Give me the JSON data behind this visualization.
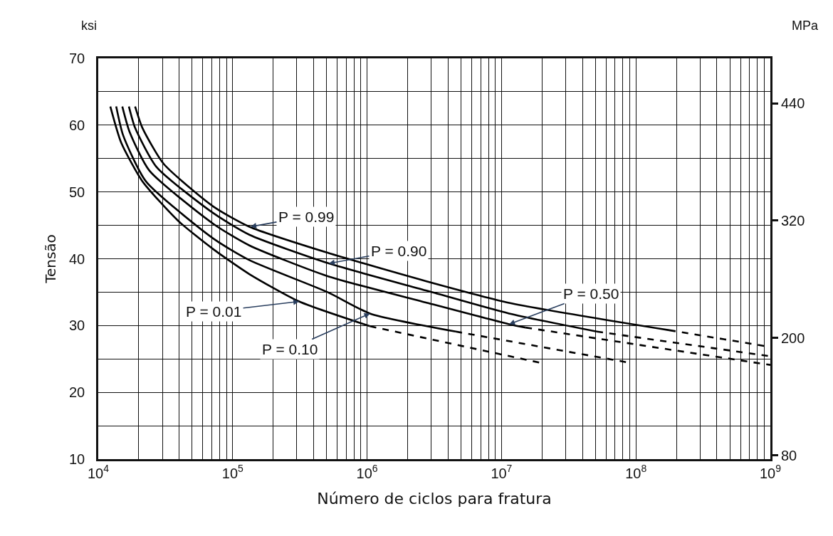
{
  "chart_data": {
    "type": "line",
    "xlabel": "Número de ciclos para fratura",
    "ylabel": "Tensão",
    "y2label": "MPa",
    "log": "x",
    "grid": true,
    "marker": "none",
    "xlim": [
      10000,
      1000000000
    ],
    "xticks": [
      {
        "value": 10000,
        "label": "10$^{4}$"
      },
      {
        "value": 20000,
        "label": null
      },
      {
        "value": 30000,
        "label": null
      },
      {
        "value": 40000,
        "label": null
      },
      {
        "value": 50000,
        "label": null
      },
      {
        "value": 60000,
        "label": null
      },
      {
        "value": 70000,
        "label": null
      },
      {
        "value": 80000,
        "label": null
      },
      {
        "value": 90000,
        "label": null
      },
      {
        "value": 100000,
        "label": "10$^{5}$"
      },
      {
        "value": 200000,
        "label": null
      },
      {
        "value": 300000,
        "label": null
      },
      {
        "value": 400000,
        "label": null
      },
      {
        "value": 500000,
        "label": null
      },
      {
        "value": 600000,
        "label": null
      },
      {
        "value": 700000,
        "label": null
      },
      {
        "value": 800000,
        "label": null
      },
      {
        "value": 900000,
        "label": null
      },
      {
        "value": 1000000,
        "label": "10$^{6}$"
      },
      {
        "value": 2000000,
        "label": null
      },
      {
        "value": 3000000,
        "label": null
      },
      {
        "value": 4000000,
        "label": null
      },
      {
        "value": 5000000,
        "label": null
      },
      {
        "value": 6000000,
        "label": null
      },
      {
        "value": 7000000,
        "label": null
      },
      {
        "value": 8000000,
        "label": null
      },
      {
        "value": 9000000,
        "label": null
      },
      {
        "value": 10000000,
        "label": "10$^{7}$"
      },
      {
        "value": 20000000,
        "label": null
      },
      {
        "value": 30000000,
        "label": null
      },
      {
        "value": 40000000,
        "label": null
      },
      {
        "value": 50000000,
        "label": null
      },
      {
        "value": 60000000,
        "label": null
      },
      {
        "value": 70000000,
        "label": null
      },
      {
        "value": 80000000,
        "label": null
      },
      {
        "value": 90000000,
        "label": null
      },
      {
        "value": 100000000,
        "label": "10$^{8}$"
      },
      {
        "value": 200000000,
        "label": null
      },
      {
        "value": 300000000,
        "label": null
      },
      {
        "value": 400000000,
        "label": null
      },
      {
        "value": 500000000,
        "label": null
      },
      {
        "value": 600000000,
        "label": null
      },
      {
        "value": 700000000,
        "label": null
      },
      {
        "value": 800000000,
        "label": null
      },
      {
        "value": 900000000,
        "label": null
      },
      {
        "value": 1000000000,
        "label": "10$^{9}$"
      }
    ],
    "ylim": [
      10,
      70
    ],
    "yticks": [
      10,
      {
        "value": 15,
        "label": null
      },
      20,
      {
        "value": 25,
        "label": null
      },
      30,
      {
        "value": 35,
        "label": null
      },
      40,
      {
        "value": 45,
        "label": null
      },
      50,
      {
        "value": 55,
        "label": null
      },
      60,
      {
        "value": 65,
        "label": null
      },
      70
    ],
    "y2lim": [
      76,
      486
    ],
    "y2ticks": [
      80,
      200,
      320,
      440
    ],
    "series": [
      {
        "color": "#000000",
        "line_style": "solid",
        "x": [
          18800,
          21300,
          30700,
          72100,
          133000,
          508000,
          2800000,
          11400000,
          177000000
        ],
        "values": [
          62.8,
          59.6,
          54.2,
          47.8,
          44.8,
          40.9,
          36.6,
          33.4,
          29.3
        ]
      },
      {
        "color": "#000000",
        "line_style": "dashed",
        "x": [
          177000000,
          1000000000
        ],
        "values": [
          29.3,
          26.8
        ]
      },
      {
        "color": "#000000",
        "line_style": "solid",
        "x": [
          16900,
          18800,
          27200,
          72100,
          133000,
          520000,
          2800000,
          11400000,
          51000000
        ],
        "values": [
          62.8,
          59.6,
          53.7,
          46.8,
          43.6,
          39.3,
          35.2,
          31.8,
          29.1
        ]
      },
      {
        "color": "#000000",
        "line_style": "dashed",
        "x": [
          51000000,
          1000000000
        ],
        "values": [
          29.1,
          25.4
        ]
      },
      {
        "color": "#000000",
        "line_style": "solid",
        "x": [
          15100,
          17100,
          24000,
          72100,
          133000,
          508000,
          2800000,
          11400000,
          15100000
        ],
        "values": [
          62.8,
          59.0,
          53.2,
          45.2,
          42.0,
          37.4,
          33.4,
          30.2,
          29.7
        ]
      },
      {
        "color": "#000000",
        "line_style": "dashed",
        "x": [
          15100000,
          1000000000
        ],
        "values": [
          29.7,
          24.1
        ]
      },
      {
        "color": "#000000",
        "line_style": "solid",
        "x": [
          13600,
          15300,
          22600,
          72100,
          133000,
          508000,
          1050000,
          4560000
        ],
        "values": [
          62.8,
          58.5,
          51.6,
          43.0,
          39.8,
          35.0,
          31.8,
          29.1
        ]
      },
      {
        "color": "#000000",
        "line_style": "dashed",
        "x": [
          4560000,
          91600000
        ],
        "values": [
          29.1,
          24.4
        ]
      },
      {
        "color": "#000000",
        "line_style": "solid",
        "x": [
          12300,
          14800,
          21300,
          39200,
          72100,
          133000,
          312000,
          1050000
        ],
        "values": [
          62.8,
          57.4,
          51.6,
          45.7,
          41.4,
          37.7,
          33.6,
          29.9
        ]
      },
      {
        "color": "#000000",
        "line_style": "dashed",
        "x": [
          1050000,
          19700000
        ],
        "values": [
          29.9,
          24.4
        ]
      }
    ],
    "annotations": [
      "ksi",
      {
        "text": "P = 0.99",
        "x": 136000,
        "y": 44.8
      },
      {
        "text": "P = 0.90",
        "x": 520000,
        "y": 39.3
      },
      {
        "text": "P = 0.50",
        "x": 11400000,
        "y": 30.2
      },
      {
        "text": "P = 0.01",
        "x": 312000,
        "y": 33.6
      },
      {
        "text": "P = 0.10",
        "x": 1050000,
        "y": 31.8
      }
    ]
  }
}
